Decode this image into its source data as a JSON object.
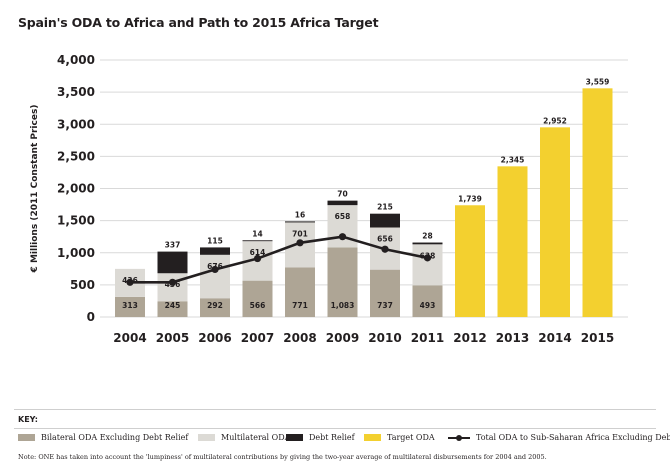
{
  "title": "Spain's ODA to Africa and Path to 2015 Africa Target",
  "key_title": "KEY:",
  "note": "Note: ONE has taken into account the 'lumpiness' of multilateral contributions by giving the two-year average of multilateral disbursements for 2004 and 2005.",
  "legend": [
    {
      "label": "Bilateral ODA Excluding Debt Relief",
      "color": "#aea595",
      "kind": "swatch"
    },
    {
      "label": "Multilateral ODA",
      "color": "#dcdad5",
      "kind": "swatch"
    },
    {
      "label": "Debt Relief",
      "color": "#231f20",
      "kind": "swatch"
    },
    {
      "label": "Target ODA",
      "color": "#f3d02f",
      "kind": "swatch"
    },
    {
      "label": "Total ODA to Sub-Saharan Africa Excluding Debt",
      "color": "#231f20",
      "kind": "line"
    }
  ],
  "chart_data": {
    "type": "bar",
    "stacked": true,
    "title": "Spain's ODA to Africa and Path to 2015 Africa Target",
    "ylabel": "€ Millions (2011 Constant Prices)",
    "xlabel": "",
    "ylim": [
      0,
      4000
    ],
    "yticks": [
      0,
      500,
      1000,
      1500,
      2000,
      2500,
      3000,
      3500,
      4000
    ],
    "ytick_labels": [
      "0",
      "500",
      "1,000",
      "1,500",
      "2,000",
      "2,500",
      "3,000",
      "3,500",
      "4,000"
    ],
    "grid": true,
    "categories": [
      "2004",
      "2005",
      "2006",
      "2007",
      "2008",
      "2009",
      "2010",
      "2011",
      "2012",
      "2013",
      "2014",
      "2015"
    ],
    "series": [
      {
        "name": "Bilateral ODA Excluding Debt Relief",
        "color": "#aea595",
        "values": [
          313,
          245,
          292,
          566,
          771,
          1083,
          737,
          493,
          null,
          null,
          null,
          null
        ],
        "labels": [
          "313",
          "245",
          "292",
          "566",
          "771",
          "1,083",
          "737",
          "493",
          null,
          null,
          null,
          null
        ]
      },
      {
        "name": "Multilateral ODA",
        "color": "#dcdad5",
        "values": [
          436,
          436,
          676,
          614,
          701,
          658,
          656,
          638,
          null,
          null,
          null,
          null
        ],
        "labels": [
          "436",
          "436",
          "676",
          "614",
          "701",
          "658",
          "656",
          "638",
          null,
          null,
          null,
          null
        ]
      },
      {
        "name": "Debt Relief",
        "color": "#231f20",
        "values": [
          null,
          337,
          115,
          14,
          16,
          70,
          215,
          28,
          null,
          null,
          null,
          null
        ],
        "labels": [
          null,
          "337",
          "115",
          "14",
          "16",
          "70",
          "215",
          "28",
          null,
          null,
          null,
          null
        ]
      },
      {
        "name": "Target ODA",
        "color": "#f3d02f",
        "values": [
          null,
          null,
          null,
          null,
          null,
          null,
          null,
          null,
          1739,
          2345,
          2952,
          3559
        ],
        "labels": [
          null,
          null,
          null,
          null,
          null,
          null,
          null,
          null,
          "1,739",
          "2,345",
          "2,952",
          "3,559"
        ]
      }
    ],
    "line": {
      "name": "Total ODA to Sub-Saharan Africa Excluding Debt",
      "color": "#231f20",
      "values": [
        540,
        540,
        740,
        910,
        1155,
        1250,
        1055,
        920,
        null,
        null,
        null,
        null
      ]
    },
    "legend_position": "bottom"
  }
}
